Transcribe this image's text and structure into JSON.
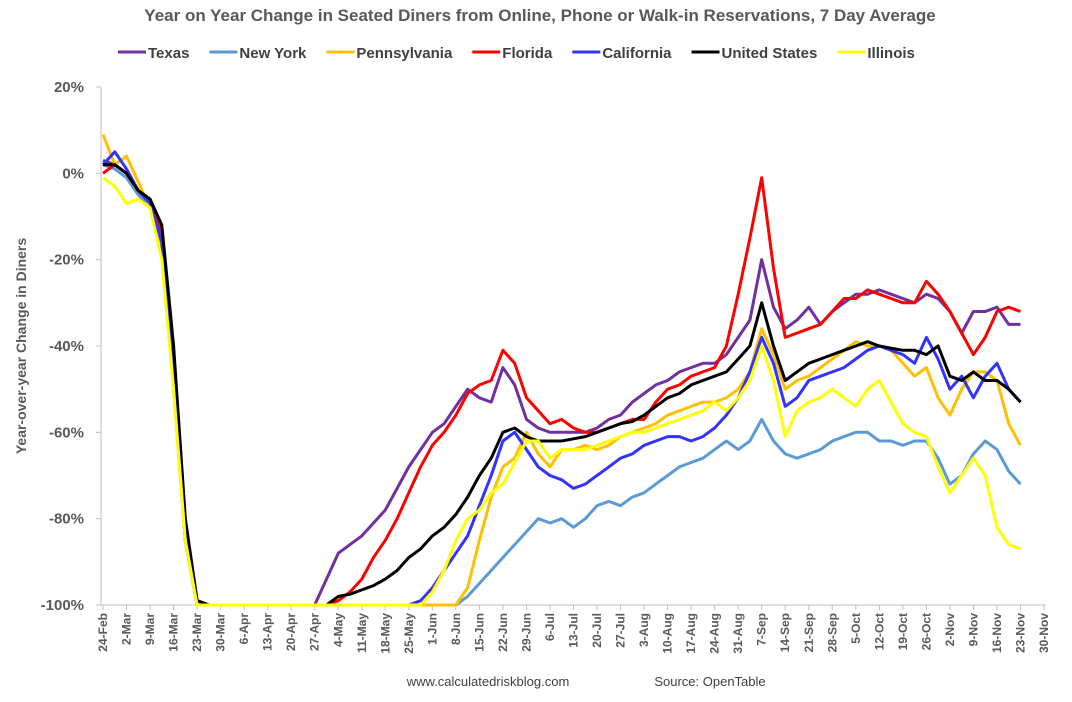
{
  "chart_data": {
    "type": "line",
    "title": "Year on Year Change in Seated Diners from Online, Phone or Walk-in Reservations, 7 Day Average",
    "y_label": "Year-over-year Change in Diners",
    "source_left": "www.calculatedriskblog.com",
    "source_right": "Source: OpenTable",
    "ylim": [
      -100,
      20
    ],
    "yticks": [
      {
        "value": 20,
        "label": "20%"
      },
      {
        "value": 0,
        "label": "0%"
      },
      {
        "value": -20,
        "label": "-20%"
      },
      {
        "value": -40,
        "label": "-40%"
      },
      {
        "value": -60,
        "label": "-60%"
      },
      {
        "value": -80,
        "label": "-80%"
      },
      {
        "value": -100,
        "label": "-100%"
      }
    ],
    "categories": [
      "24-Feb",
      null,
      "2-Mar",
      null,
      "9-Mar",
      null,
      "16-Mar",
      null,
      "23-Mar",
      null,
      "30-Mar",
      null,
      "6-Apr",
      null,
      "13-Apr",
      null,
      "20-Apr",
      null,
      "27-Apr",
      null,
      "4-May",
      null,
      "11-May",
      null,
      "18-May",
      null,
      "25-May",
      null,
      "1-Jun",
      null,
      "8-Jun",
      null,
      "15-Jun",
      null,
      "22-Jun",
      null,
      "29-Jun",
      null,
      "6-Jul",
      null,
      "13-Jul",
      null,
      "20-Jul",
      null,
      "27-Jul",
      null,
      "3-Aug",
      null,
      "10-Aug",
      null,
      "17-Aug",
      null,
      "24-Aug",
      null,
      "31-Aug",
      null,
      "7-Sep",
      null,
      "14-Sep",
      null,
      "21-Sep",
      null,
      "28-Sep",
      null,
      "5-Oct",
      null,
      "12-Oct",
      null,
      "19-Oct",
      null,
      "26-Oct",
      null,
      "2-Nov",
      null,
      "9-Nov",
      null,
      "16-Nov",
      null,
      "23-Nov",
      null,
      "30-Nov"
    ],
    "series": [
      {
        "name": "Texas",
        "color": "#7030a0",
        "values": [
          3,
          2,
          0,
          -4,
          -7,
          -14,
          -42,
          -80,
          -99,
          -100,
          -100,
          -100,
          -100,
          -100,
          -100,
          -100,
          -100,
          -100,
          -100,
          -94,
          -88,
          -86,
          -84,
          -81,
          -78,
          -73,
          -68,
          -64,
          -60,
          -58,
          -54,
          -50,
          -52,
          -53,
          -45,
          -49,
          -57,
          -59,
          -60,
          -60,
          -60,
          -60,
          -59,
          -57,
          -56,
          -53,
          -51,
          -49,
          -48,
          -46,
          -45,
          -44,
          -44,
          -42,
          -38,
          -34,
          -20,
          -31,
          -36,
          -34,
          -31,
          -35,
          -32,
          -30,
          -28,
          -28,
          -27,
          -28,
          -29,
          -30,
          -28,
          -29,
          -32,
          -37,
          -32,
          -32,
          -31,
          -35,
          -35,
          null,
          null
        ]
      },
      {
        "name": "New York",
        "color": "#5b9bd5",
        "values": [
          2,
          1,
          -1,
          -5,
          -8,
          -17,
          -50,
          -85,
          -100,
          -100,
          -100,
          -100,
          -100,
          -100,
          -100,
          -100,
          -100,
          -100,
          -100,
          -100,
          -100,
          -100,
          -100,
          -100,
          -100,
          -100,
          -100,
          -100,
          -100,
          -100,
          -100,
          -98,
          -95,
          -92,
          -89,
          -86,
          -83,
          -80,
          -81,
          -80,
          -82,
          -80,
          -77,
          -76,
          -77,
          -75,
          -74,
          -72,
          -70,
          -68,
          -67,
          -66,
          -64,
          -62,
          -64,
          -62,
          -57,
          -62,
          -65,
          -66,
          -65,
          -64,
          -62,
          -61,
          -60,
          -60,
          -62,
          -62,
          -63,
          -62,
          -62,
          -66,
          -72,
          -70,
          -65,
          -62,
          -64,
          -69,
          -72,
          null,
          null
        ]
      },
      {
        "name": "Pennsylvania",
        "color": "#ffc000",
        "values": [
          9,
          2,
          4,
          -2,
          -8,
          -18,
          -50,
          -85,
          -100,
          -100,
          -100,
          -100,
          -100,
          -100,
          -100,
          -100,
          -100,
          -100,
          -100,
          -100,
          -100,
          -100,
          -100,
          -100,
          -100,
          -100,
          -100,
          -100,
          -100,
          -100,
          -100,
          -96,
          -85,
          -75,
          -68,
          -66,
          -60,
          -65,
          -68,
          -64,
          -64,
          -63,
          -64,
          -63,
          -61,
          -60,
          -59,
          -58,
          -56,
          -55,
          -54,
          -53,
          -53,
          -52,
          -50,
          -46,
          -36,
          -42,
          -50,
          -48,
          -47,
          -45,
          -43,
          -41,
          -39,
          -40,
          -40,
          -41,
          -44,
          -47,
          -45,
          -52,
          -56,
          -50,
          -46,
          -46,
          -48,
          -58,
          -63,
          null,
          null
        ]
      },
      {
        "name": "Florida",
        "color": "#ff0000",
        "values": [
          0,
          2,
          0,
          -4,
          -6,
          -13,
          -42,
          -82,
          -99,
          -100,
          -100,
          -100,
          -100,
          -100,
          -100,
          -100,
          -100,
          -100,
          -100,
          -100,
          -99,
          -97,
          -94,
          -89,
          -85,
          -80,
          -74,
          -68,
          -63,
          -60,
          -56,
          -51,
          -49,
          -48,
          -41,
          -44,
          -52,
          -55,
          -58,
          -57,
          -59,
          -60,
          -60,
          -59,
          -58,
          -57,
          -57,
          -53,
          -50,
          -49,
          -47,
          -46,
          -45,
          -40,
          -28,
          -15,
          -1,
          -22,
          -38,
          -37,
          -36,
          -35,
          -32,
          -29,
          -29,
          -27,
          -28,
          -29,
          -30,
          -30,
          -25,
          -28,
          -32,
          -37,
          -42,
          -38,
          -32,
          -31,
          -32,
          null,
          null
        ]
      },
      {
        "name": "California",
        "color": "#3333ff",
        "values": [
          2,
          5,
          1,
          -4,
          -7,
          -16,
          -48,
          -85,
          -100,
          -100,
          -100,
          -100,
          -100,
          -100,
          -100,
          -100,
          -100,
          -100,
          -100,
          -100,
          -100,
          -100,
          -100,
          -100,
          -100,
          -100,
          -100,
          -99,
          -96,
          -92,
          -88,
          -84,
          -77,
          -70,
          -62,
          -60,
          -64,
          -68,
          -70,
          -71,
          -73,
          -72,
          -70,
          -68,
          -66,
          -65,
          -63,
          -62,
          -61,
          -61,
          -62,
          -61,
          -59,
          -56,
          -52,
          -46,
          -38,
          -44,
          -54,
          -52,
          -48,
          -47,
          -46,
          -45,
          -43,
          -41,
          -40,
          -41,
          -42,
          -44,
          -38,
          -43,
          -50,
          -47,
          -52,
          -47,
          -44,
          -50,
          -53,
          null,
          null
        ]
      },
      {
        "name": "United States",
        "color": "#000000",
        "values": [
          2,
          2,
          0,
          -4,
          -6,
          -12,
          -40,
          -80,
          -99,
          -100,
          -100,
          -100,
          -100,
          -100,
          -100,
          -100,
          -100,
          -100,
          -100,
          -100,
          -98,
          -97.5,
          -96.5,
          -95.5,
          -94,
          -92,
          -89,
          -87,
          -84,
          -82,
          -79,
          -75,
          -70,
          -66,
          -60,
          -59,
          -61,
          -62,
          -62,
          -62,
          -61.5,
          -61,
          -60,
          -59,
          -58,
          -57.5,
          -56,
          -54,
          -52,
          -51,
          -49,
          -48,
          -47,
          -46,
          -43,
          -40,
          -30,
          -40,
          -48,
          -46,
          -44,
          -43,
          -42,
          -41,
          -40,
          -39,
          -40,
          -40.5,
          -41,
          -41,
          -42,
          -40,
          -47,
          -48,
          -46,
          -48,
          -48,
          -50,
          -53,
          null,
          null
        ]
      },
      {
        "name": "Illinois",
        "color": "#ffff00",
        "values": [
          -1,
          -3,
          -7,
          -6,
          -8,
          -20,
          -50,
          -85,
          -100,
          -100,
          -100,
          -100,
          -100,
          -100,
          -100,
          -100,
          -100,
          -100,
          -100,
          -100,
          -100,
          -100,
          -100,
          -100,
          -100,
          -100,
          -100,
          -100,
          -97,
          -92,
          -85,
          -80,
          -78,
          -74,
          -72,
          -67,
          -62,
          -62,
          -66,
          -64,
          -64,
          -64,
          -63,
          -62,
          -61,
          -60,
          -60,
          -59,
          -58,
          -57,
          -56,
          -55,
          -53,
          -55,
          -52,
          -48,
          -40,
          -48,
          -61,
          -55,
          -53,
          -52,
          -50,
          -52,
          -54,
          -50,
          -48,
          -53,
          -58,
          -60,
          -61,
          -68,
          -74,
          -70,
          -66,
          -70,
          -82,
          -86,
          -87,
          null,
          null
        ]
      }
    ]
  }
}
